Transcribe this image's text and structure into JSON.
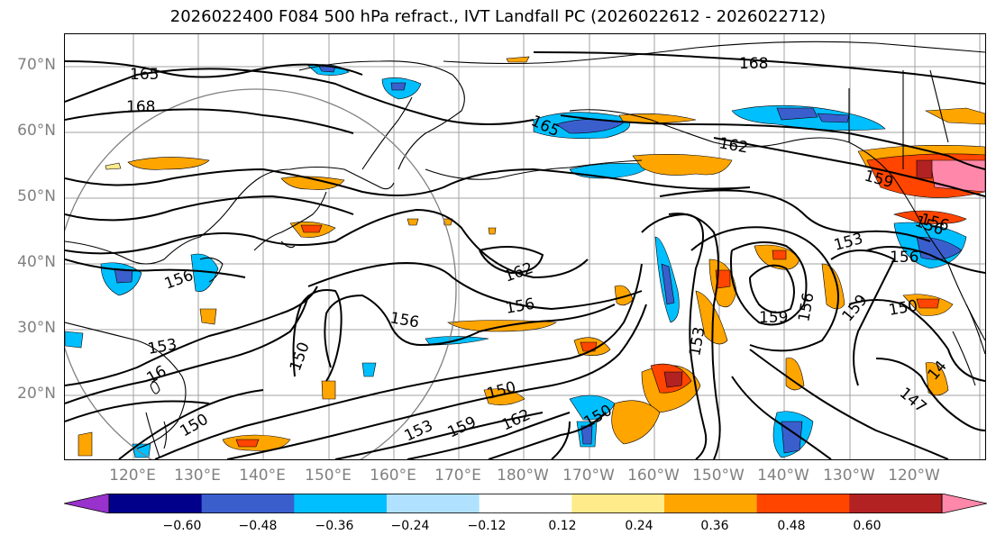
{
  "title": "2026022400 F084 500 hPa refract., IVT Landfall PC (2026022612 - 2026022712)",
  "lat_labels": [
    "70°N",
    "60°N",
    "50°N",
    "40°N",
    "30°N",
    "20°N"
  ],
  "lon_labels": [
    "120°E",
    "130°E",
    "140°E",
    "150°E",
    "160°E",
    "170°E",
    "180°W",
    "170°W",
    "160°W",
    "150°W",
    "140°W",
    "130°W",
    "120°W"
  ],
  "colorbar": {
    "ticks": [
      "−0.60",
      "−0.48",
      "−0.36",
      "−0.24",
      "−0.12",
      "0.12",
      "0.24",
      "0.36",
      "0.48",
      "0.60"
    ],
    "colors": [
      "#9932cc",
      "#00008b",
      "#3a5fcd",
      "#00bfff",
      "#b0e2ff",
      "#ffffff",
      "#ffeb8a",
      "#ffa500",
      "#ff4500",
      "#b22222",
      "#ff88aa"
    ]
  },
  "contour_labels": [
    "165",
    "168",
    "168",
    "165",
    "162",
    "156",
    "153",
    "16",
    "162",
    "156",
    "156",
    "150",
    "150",
    "150",
    "150",
    "153",
    "159",
    "162",
    "153",
    "159",
    "156",
    "153",
    "156",
    "159",
    "156",
    "150",
    "147",
    "14",
    "159",
    "156"
  ],
  "colors": {
    "contour": "#000000",
    "coast": "#000000",
    "grid": "#a0a0a0",
    "circle": "#808080",
    "axis_labels": "#808080"
  }
}
